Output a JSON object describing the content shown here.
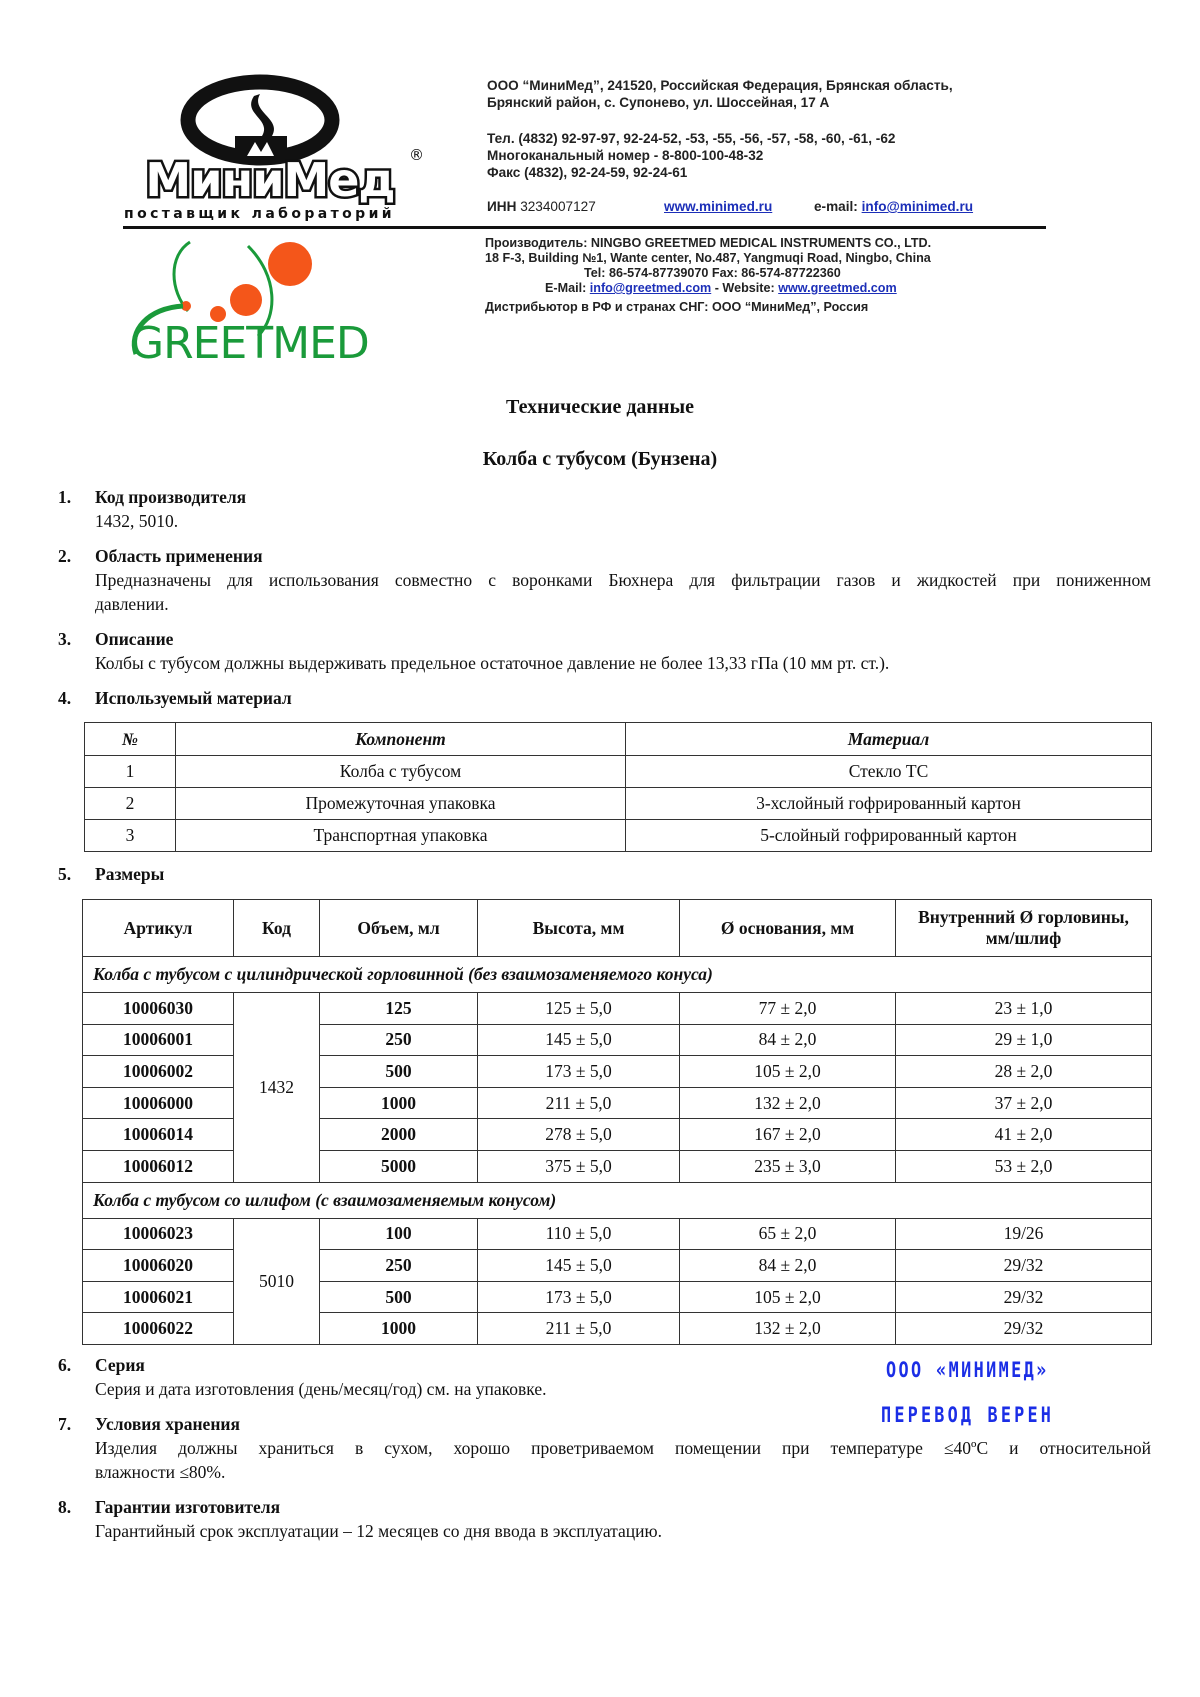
{
  "header": {
    "minimed_logo": {
      "name": "МиниМед",
      "tagline": "поставщик лабораторий",
      "mark": "®"
    },
    "greetmed_logo": {
      "name": "GREETMED"
    },
    "company_lines": [
      "ООО “МиниМед”, 241520, Российская Федерация, Брянская область,",
      "Брянский район,  с. Супонево, ул. Шоссейная, 17 А"
    ],
    "phone_lines": [
      "Тел. (4832) 92-97-97, 92-24-52, -53, -55, -56, -57, -58, -60, -61, -62",
      "Многоканальный номер - 8-800-100-48-32",
      "Факс (4832), 92-24-59, 92-24-61"
    ],
    "inn_label": "ИНН",
    "inn_value": "3234007127",
    "website": "www.minimed.ru",
    "email_label": "e-mail:",
    "email": "info@minimed.ru",
    "manufacturer_lines": [
      "Производитель: NINGBO GREETMED MEDICAL INSTRUMENTS CO., LTD.",
      "18 F-3, Building №1, Wante center, No.487, Yangmuqi Road, Ningbo, China",
      "Tel: 86-574-87739070     Fax: 86-574-87722360"
    ],
    "mfr_email_label": "E-Mail:",
    "mfr_email": "info@greetmed.com",
    "mfr_website_label": " - Website:",
    "mfr_website": "www.greetmed.com",
    "distributor": "Дистрибьютор в РФ и странах СНГ: ООО “МиниМед”, Россия"
  },
  "title": "Технические данные",
  "subtitle": "Колба с тубусом (Бунзена)",
  "sections": [
    {
      "num": "1.",
      "heading": "Код производителя",
      "body": [
        "1432, 5010."
      ]
    },
    {
      "num": "2.",
      "heading": "Область применения",
      "body": [
        "Предназначены для использования совместно с воронками Бюхнера для фильтрации газов и жидкостей при пониженном",
        "давлении."
      ]
    },
    {
      "num": "3.",
      "heading": "Описание",
      "body": [
        "Колбы с тубусом должны выдерживать предельное остаточное давление не более 13,33 гПа (10 мм рт. ст.)."
      ]
    },
    {
      "num": "4.",
      "heading": "Используемый материал"
    },
    {
      "num": "5.",
      "heading": "Размеры"
    },
    {
      "num": "6.",
      "heading": "Серия",
      "body": [
        "Серия и дата изготовления (день/месяц/год) см. на упаковке."
      ]
    },
    {
      "num": "7.",
      "heading": "Условия хранения",
      "body": [
        "Изделия должны храниться в сухом, хорошо проветриваемом помещении при температуре ≤40ºС и относительной",
        "влажности ≤80%."
      ]
    },
    {
      "num": "8.",
      "heading": "Гарантии изготовителя",
      "body": [
        "Гарантийный срок эксплуатации – 12 месяцев со дня ввода в эксплуатацию."
      ]
    }
  ],
  "materials_table": {
    "headers": [
      "№",
      "Компонент",
      "Материал"
    ],
    "rows": [
      [
        "1",
        "Колба с тубусом",
        "Стекло ТС"
      ],
      [
        "2",
        "Промежуточная упаковка",
        "3-хслойный гофрированный картон"
      ],
      [
        "3",
        "Транспортная упаковка",
        "5-слойный гофрированный картон"
      ]
    ]
  },
  "dimensions_table": {
    "headers": [
      "Артикул",
      "Код",
      "Объем, мл",
      "Высота, мм",
      "Ø основания, мм",
      "Внутренний Ø горловины, мм/шлиф"
    ],
    "groups": [
      {
        "title": "Колба с тубусом с цилиндрической горловинной (без взаимозаменяемого конуса)",
        "code": "1432",
        "rows": [
          [
            "10006030",
            "125",
            "125 ± 5,0",
            "77 ± 2,0",
            "23 ± 1,0"
          ],
          [
            "10006001",
            "250",
            "145 ± 5,0",
            "84 ± 2,0",
            "29 ± 1,0"
          ],
          [
            "10006002",
            "500",
            "173 ± 5,0",
            "105 ± 2,0",
            "28 ± 2,0"
          ],
          [
            "10006000",
            "1000",
            "211 ± 5,0",
            "132 ± 2,0",
            "37 ± 2,0"
          ],
          [
            "10006014",
            "2000",
            "278 ± 5,0",
            "167 ± 2,0",
            "41 ± 2,0"
          ],
          [
            "10006012",
            "5000",
            "375 ± 5,0",
            "235 ± 3,0",
            "53 ± 2,0"
          ]
        ]
      },
      {
        "title": "Колба с тубусом со шлифом (с взаимозаменяемым конусом)",
        "code": "5010",
        "rows": [
          [
            "10006023",
            "100",
            "110 ± 5,0",
            "65 ± 2,0",
            "19/26"
          ],
          [
            "10006020",
            "250",
            "145 ± 5,0",
            "84 ± 2,0",
            "29/32"
          ],
          [
            "10006021",
            "500",
            "173 ± 5,0",
            "105 ± 2,0",
            "29/32"
          ],
          [
            "10006022",
            "1000",
            "211 ± 5,0",
            "132 ± 2,0",
            "29/32"
          ]
        ]
      }
    ]
  },
  "stamp": {
    "line1": "ООО «МИНИМЕД»",
    "line2": "ПЕРЕВОД ВЕРЕН",
    "color": "#1b2ee6"
  }
}
